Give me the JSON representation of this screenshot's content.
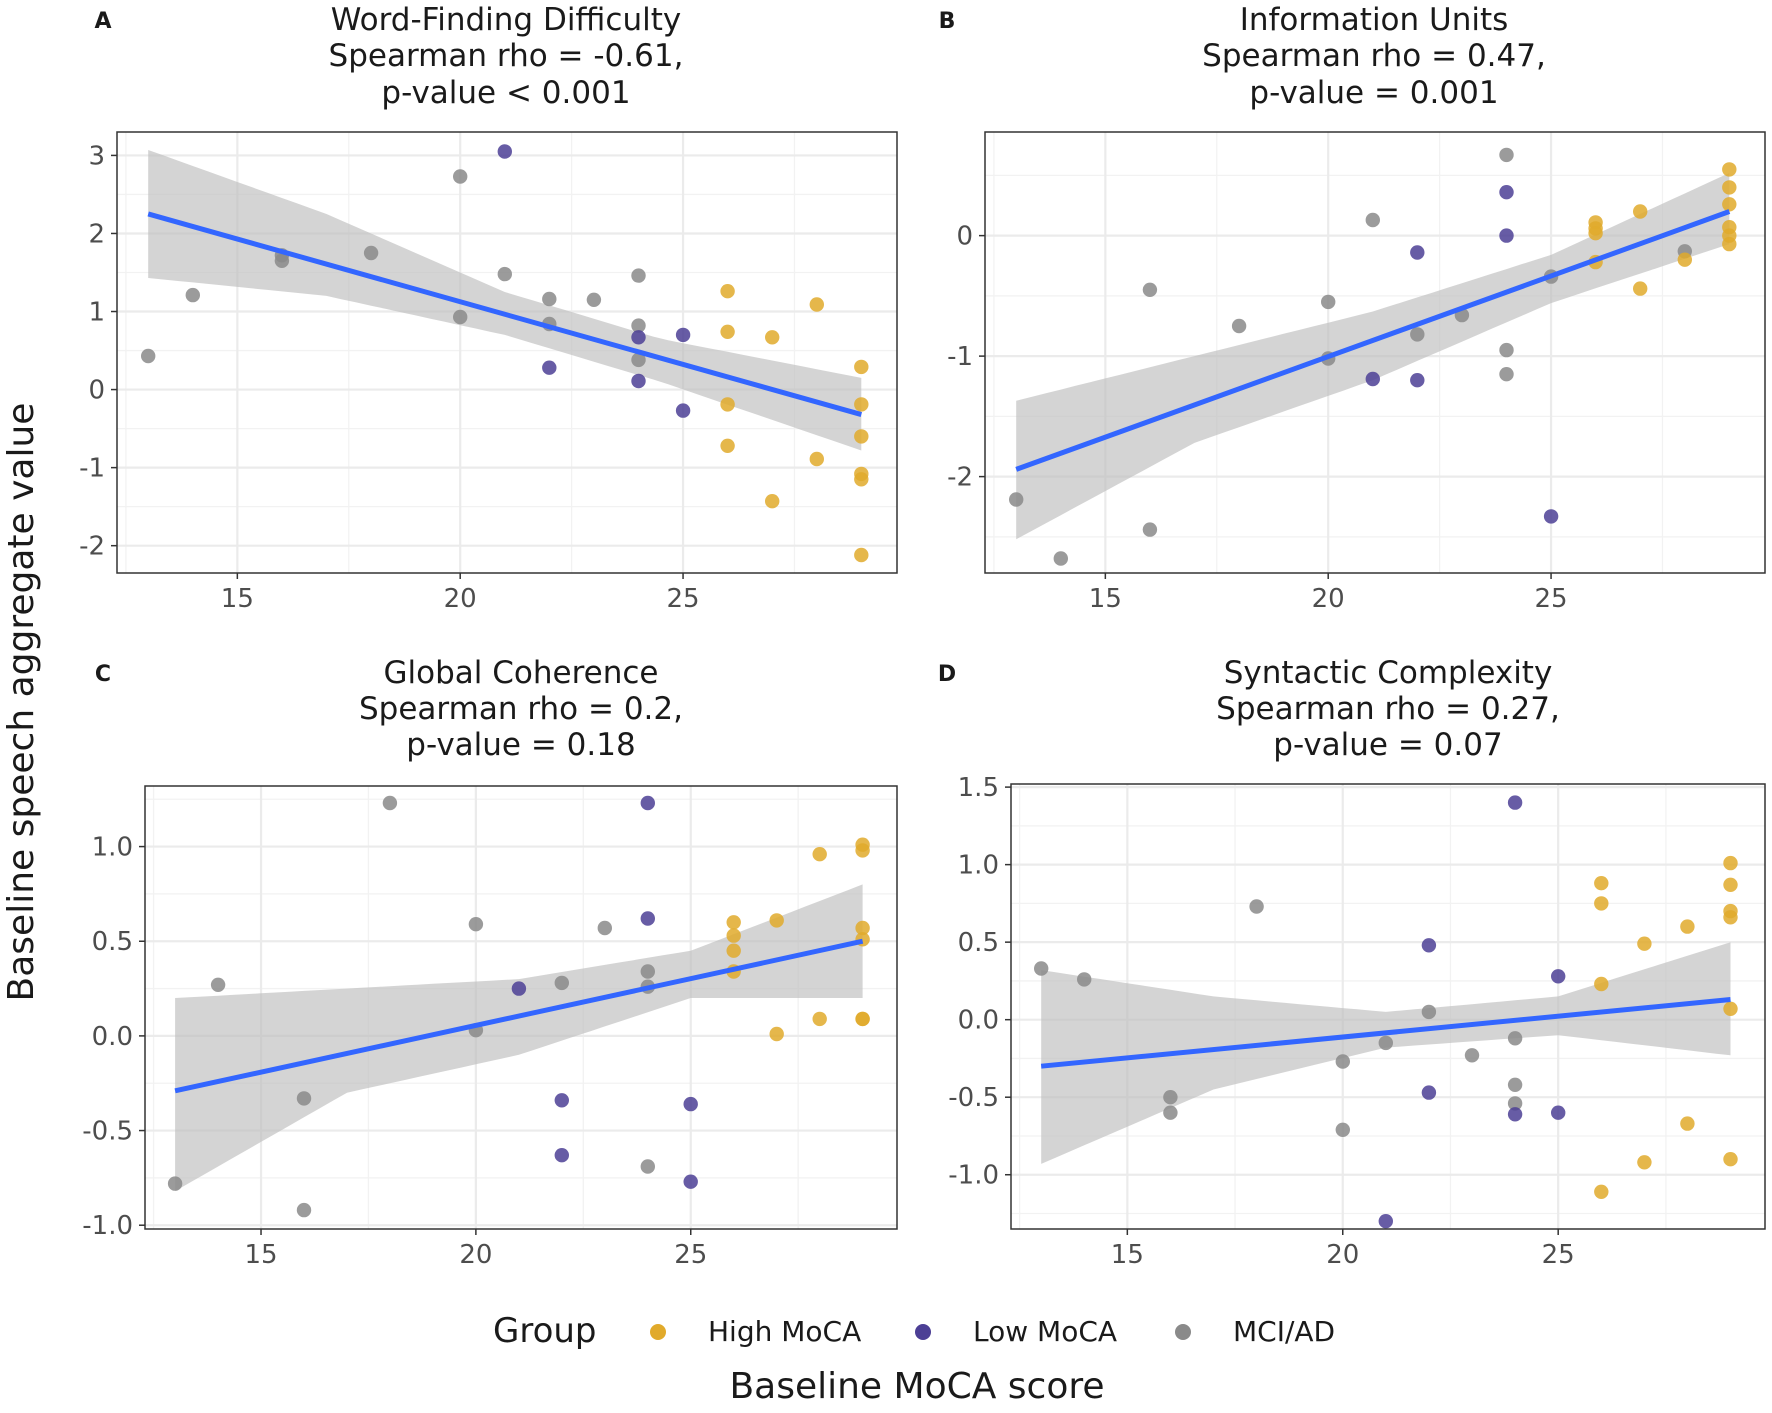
{
  "chart_data": {
    "ylabel_shared": "Baseline speech aggregate value",
    "xlabel_shared": "Baseline MoCA score",
    "legend": {
      "title": "Group",
      "items": [
        {
          "label": "High MoCA",
          "color": "#E1AA2B"
        },
        {
          "label": "Low MoCA",
          "color": "#4C3F95"
        },
        {
          "label": "MCI/AD",
          "color": "#8A8A8A"
        }
      ],
      "placement": "bottom-center"
    },
    "colors": {
      "fit_line": "#3366FF",
      "ribbon": "#BDBDBD",
      "panel_border": "#333333",
      "grid": "#EBEBEB"
    },
    "panels": [
      {
        "letter": "A",
        "type": "scatter",
        "title_lines": [
          "Word-Finding Difficulty",
          "Spearman rho = -0.61,",
          "p-value < 0.001"
        ],
        "xlim": [
          12.3,
          29.8
        ],
        "ylim": [
          -2.35,
          3.3
        ],
        "xticks": [
          15,
          20,
          25
        ],
        "yticks": [
          3,
          2,
          1,
          0,
          -1,
          -2
        ],
        "ytick_labels": [
          "3",
          "2",
          "1",
          "0",
          "-1",
          "-2"
        ],
        "fit": {
          "x": [
            13,
            29
          ],
          "y": [
            2.25,
            -0.32
          ]
        },
        "ribbon": {
          "x": [
            13,
            17,
            21,
            24.5,
            29
          ],
          "upper": [
            3.07,
            2.25,
            1.25,
            0.65,
            0.15
          ],
          "lower": [
            1.43,
            1.2,
            0.7,
            0.1,
            -0.78
          ]
        },
        "points": [
          {
            "x": 13,
            "y": 0.43,
            "group": 2
          },
          {
            "x": 14,
            "y": 1.21,
            "group": 2
          },
          {
            "x": 16,
            "y": 1.72,
            "group": 2
          },
          {
            "x": 16,
            "y": 1.65,
            "group": 2
          },
          {
            "x": 18,
            "y": 1.75,
            "group": 2
          },
          {
            "x": 20,
            "y": 2.73,
            "group": 2
          },
          {
            "x": 20,
            "y": 0.93,
            "group": 2
          },
          {
            "x": 21,
            "y": 3.05,
            "group": 1
          },
          {
            "x": 21,
            "y": 1.48,
            "group": 2
          },
          {
            "x": 22,
            "y": 1.16,
            "group": 2
          },
          {
            "x": 22,
            "y": 0.84,
            "group": 2
          },
          {
            "x": 22,
            "y": 0.28,
            "group": 1
          },
          {
            "x": 23,
            "y": 1.15,
            "group": 2
          },
          {
            "x": 24,
            "y": 1.46,
            "group": 2
          },
          {
            "x": 24,
            "y": 0.82,
            "group": 2
          },
          {
            "x": 24,
            "y": 0.67,
            "group": 1
          },
          {
            "x": 24,
            "y": 0.38,
            "group": 2
          },
          {
            "x": 24,
            "y": 0.11,
            "group": 1
          },
          {
            "x": 25,
            "y": 0.7,
            "group": 1
          },
          {
            "x": 25,
            "y": -0.27,
            "group": 1
          },
          {
            "x": 26,
            "y": 1.26,
            "group": 0
          },
          {
            "x": 26,
            "y": 0.74,
            "group": 0
          },
          {
            "x": 26,
            "y": -0.19,
            "group": 0
          },
          {
            "x": 26,
            "y": -0.72,
            "group": 0
          },
          {
            "x": 27,
            "y": 0.67,
            "group": 0
          },
          {
            "x": 27,
            "y": -1.43,
            "group": 0
          },
          {
            "x": 28,
            "y": 1.09,
            "group": 0
          },
          {
            "x": 28,
            "y": -0.89,
            "group": 0
          },
          {
            "x": 29,
            "y": 0.29,
            "group": 0
          },
          {
            "x": 29,
            "y": -0.19,
            "group": 0
          },
          {
            "x": 29,
            "y": -0.6,
            "group": 0
          },
          {
            "x": 29,
            "y": -1.08,
            "group": 0
          },
          {
            "x": 29,
            "y": -1.15,
            "group": 0
          },
          {
            "x": 29,
            "y": -2.12,
            "group": 0
          }
        ]
      },
      {
        "letter": "B",
        "type": "scatter",
        "title_lines": [
          "Information Units",
          "Spearman rho = 0.47,",
          "p-value = 0.001"
        ],
        "xlim": [
          12.3,
          29.8
        ],
        "ylim": [
          -2.8,
          0.86
        ],
        "xticks": [
          15,
          20,
          25
        ],
        "yticks": [
          0,
          -1,
          -2
        ],
        "ytick_labels": [
          "0",
          "-1",
          "-2"
        ],
        "fit": {
          "x": [
            13,
            29
          ],
          "y": [
            -1.94,
            0.2
          ]
        },
        "ribbon": {
          "x": [
            13,
            17,
            21,
            25,
            29
          ],
          "upper": [
            -1.37,
            -1.0,
            -0.63,
            -0.16,
            0.52
          ],
          "lower": [
            -2.52,
            -1.72,
            -1.2,
            -0.56,
            -0.07
          ]
        },
        "points": [
          {
            "x": 13,
            "y": -2.19,
            "group": 2
          },
          {
            "x": 14,
            "y": -2.68,
            "group": 2
          },
          {
            "x": 16,
            "y": -0.45,
            "group": 2
          },
          {
            "x": 16,
            "y": -2.44,
            "group": 2
          },
          {
            "x": 18,
            "y": -0.75,
            "group": 2
          },
          {
            "x": 20,
            "y": -0.55,
            "group": 2
          },
          {
            "x": 20,
            "y": -1.02,
            "group": 2
          },
          {
            "x": 21,
            "y": 0.13,
            "group": 2
          },
          {
            "x": 21,
            "y": -1.19,
            "group": 1
          },
          {
            "x": 22,
            "y": -0.14,
            "group": 1
          },
          {
            "x": 22,
            "y": -0.82,
            "group": 2
          },
          {
            "x": 22,
            "y": -1.2,
            "group": 1
          },
          {
            "x": 23,
            "y": -0.66,
            "group": 2
          },
          {
            "x": 24,
            "y": 0.67,
            "group": 2
          },
          {
            "x": 24,
            "y": 0.36,
            "group": 1
          },
          {
            "x": 24,
            "y": 0.0,
            "group": 1
          },
          {
            "x": 24,
            "y": -0.95,
            "group": 2
          },
          {
            "x": 24,
            "y": -1.15,
            "group": 2
          },
          {
            "x": 25,
            "y": -0.34,
            "group": 2
          },
          {
            "x": 25,
            "y": -2.33,
            "group": 1
          },
          {
            "x": 26,
            "y": 0.11,
            "group": 0
          },
          {
            "x": 26,
            "y": 0.06,
            "group": 0
          },
          {
            "x": 26,
            "y": 0.02,
            "group": 0
          },
          {
            "x": 26,
            "y": -0.22,
            "group": 0
          },
          {
            "x": 27,
            "y": 0.2,
            "group": 0
          },
          {
            "x": 27,
            "y": -0.44,
            "group": 0
          },
          {
            "x": 28,
            "y": -0.13,
            "group": 2
          },
          {
            "x": 28,
            "y": -0.2,
            "group": 0
          },
          {
            "x": 29,
            "y": 0.55,
            "group": 0
          },
          {
            "x": 29,
            "y": 0.4,
            "group": 0
          },
          {
            "x": 29,
            "y": 0.26,
            "group": 0
          },
          {
            "x": 29,
            "y": 0.07,
            "group": 0
          },
          {
            "x": 29,
            "y": 0.0,
            "group": 0
          },
          {
            "x": 29,
            "y": -0.07,
            "group": 0
          }
        ]
      },
      {
        "letter": "C",
        "type": "scatter",
        "title_lines": [
          "Global Coherence",
          "Spearman rho = 0.2,",
          "p-value = 0.18"
        ],
        "xlim": [
          12.3,
          29.8
        ],
        "ylim": [
          -1.02,
          1.32
        ],
        "xticks": [
          15,
          20,
          25
        ],
        "yticks": [
          1.0,
          0.5,
          0.0,
          -0.5,
          -1.0
        ],
        "ytick_labels": [
          "1.0",
          "0.5",
          "0.0",
          "-0.5",
          "-1.0"
        ],
        "fit": {
          "x": [
            13,
            29
          ],
          "y": [
            -0.29,
            0.5
          ]
        },
        "ribbon": {
          "x": [
            13,
            17,
            21,
            25,
            29
          ],
          "upper": [
            0.2,
            0.25,
            0.3,
            0.45,
            0.8
          ],
          "lower": [
            -0.82,
            -0.3,
            -0.1,
            0.2,
            0.2
          ]
        },
        "points": [
          {
            "x": 13,
            "y": -0.78,
            "group": 2
          },
          {
            "x": 14,
            "y": 0.27,
            "group": 2
          },
          {
            "x": 16,
            "y": -0.33,
            "group": 2
          },
          {
            "x": 16,
            "y": -0.92,
            "group": 2
          },
          {
            "x": 18,
            "y": 1.23,
            "group": 2
          },
          {
            "x": 20,
            "y": 0.59,
            "group": 2
          },
          {
            "x": 20,
            "y": 0.03,
            "group": 2
          },
          {
            "x": 21,
            "y": 0.25,
            "group": 1
          },
          {
            "x": 22,
            "y": 0.28,
            "group": 2
          },
          {
            "x": 22,
            "y": -0.34,
            "group": 1
          },
          {
            "x": 22,
            "y": -0.63,
            "group": 1
          },
          {
            "x": 23,
            "y": 0.57,
            "group": 2
          },
          {
            "x": 24,
            "y": 1.23,
            "group": 1
          },
          {
            "x": 24,
            "y": 0.62,
            "group": 1
          },
          {
            "x": 24,
            "y": 0.34,
            "group": 2
          },
          {
            "x": 24,
            "y": 0.26,
            "group": 2
          },
          {
            "x": 24,
            "y": -0.69,
            "group": 2
          },
          {
            "x": 25,
            "y": -0.36,
            "group": 1
          },
          {
            "x": 25,
            "y": -0.77,
            "group": 1
          },
          {
            "x": 26,
            "y": 0.6,
            "group": 0
          },
          {
            "x": 26,
            "y": 0.53,
            "group": 0
          },
          {
            "x": 26,
            "y": 0.45,
            "group": 0
          },
          {
            "x": 26,
            "y": 0.34,
            "group": 0
          },
          {
            "x": 27,
            "y": 0.61,
            "group": 0
          },
          {
            "x": 27,
            "y": 0.01,
            "group": 0
          },
          {
            "x": 28,
            "y": 0.96,
            "group": 0
          },
          {
            "x": 28,
            "y": 0.09,
            "group": 0
          },
          {
            "x": 29,
            "y": 1.01,
            "group": 0
          },
          {
            "x": 29,
            "y": 0.98,
            "group": 0
          },
          {
            "x": 29,
            "y": 0.57,
            "group": 0
          },
          {
            "x": 29,
            "y": 0.51,
            "group": 0
          },
          {
            "x": 29,
            "y": 0.09,
            "group": 0
          },
          {
            "x": 29,
            "y": 0.09,
            "group": 0
          }
        ]
      },
      {
        "letter": "D",
        "type": "scatter",
        "title_lines": [
          "Syntactic Complexity",
          "Spearman rho = 0.27,",
          "p-value = 0.07"
        ],
        "xlim": [
          12.3,
          29.8
        ],
        "ylim": [
          -1.35,
          1.52
        ],
        "xticks": [
          15,
          20,
          25
        ],
        "yticks": [
          1.5,
          1.0,
          0.5,
          0.0,
          -0.5,
          -1.0
        ],
        "ytick_labels": [
          "1.5",
          "1.0",
          "0.5",
          "0.0",
          "-0.5",
          "-1.0"
        ],
        "fit": {
          "x": [
            13,
            29
          ],
          "y": [
            -0.3,
            0.13
          ]
        },
        "ribbon": {
          "x": [
            13,
            17,
            21,
            25,
            29
          ],
          "upper": [
            0.32,
            0.15,
            0.05,
            0.15,
            0.5
          ],
          "lower": [
            -0.93,
            -0.45,
            -0.18,
            -0.1,
            -0.23
          ]
        },
        "points": [
          {
            "x": 13,
            "y": 0.33,
            "group": 2
          },
          {
            "x": 14,
            "y": 0.26,
            "group": 2
          },
          {
            "x": 16,
            "y": -0.5,
            "group": 2
          },
          {
            "x": 16,
            "y": -0.6,
            "group": 2
          },
          {
            "x": 18,
            "y": 0.73,
            "group": 2
          },
          {
            "x": 20,
            "y": -0.27,
            "group": 2
          },
          {
            "x": 20,
            "y": -0.71,
            "group": 2
          },
          {
            "x": 21,
            "y": -0.15,
            "group": 2
          },
          {
            "x": 21,
            "y": -1.3,
            "group": 1
          },
          {
            "x": 22,
            "y": 0.48,
            "group": 1
          },
          {
            "x": 22,
            "y": 0.05,
            "group": 2
          },
          {
            "x": 22,
            "y": -0.47,
            "group": 1
          },
          {
            "x": 23,
            "y": -0.23,
            "group": 2
          },
          {
            "x": 24,
            "y": 1.4,
            "group": 1
          },
          {
            "x": 24,
            "y": -0.12,
            "group": 2
          },
          {
            "x": 24,
            "y": -0.42,
            "group": 2
          },
          {
            "x": 24,
            "y": -0.54,
            "group": 2
          },
          {
            "x": 24,
            "y": -0.61,
            "group": 1
          },
          {
            "x": 25,
            "y": 0.28,
            "group": 1
          },
          {
            "x": 25,
            "y": -0.6,
            "group": 1
          },
          {
            "x": 26,
            "y": 0.88,
            "group": 0
          },
          {
            "x": 26,
            "y": 0.75,
            "group": 0
          },
          {
            "x": 26,
            "y": 0.23,
            "group": 0
          },
          {
            "x": 26,
            "y": -1.11,
            "group": 0
          },
          {
            "x": 27,
            "y": 0.49,
            "group": 0
          },
          {
            "x": 27,
            "y": -0.92,
            "group": 0
          },
          {
            "x": 28,
            "y": 0.6,
            "group": 0
          },
          {
            "x": 28,
            "y": -0.67,
            "group": 0
          },
          {
            "x": 29,
            "y": 1.01,
            "group": 0
          },
          {
            "x": 29,
            "y": 0.87,
            "group": 0
          },
          {
            "x": 29,
            "y": 0.7,
            "group": 0
          },
          {
            "x": 29,
            "y": 0.66,
            "group": 0
          },
          {
            "x": 29,
            "y": 0.07,
            "group": 0
          },
          {
            "x": 29,
            "y": -0.9,
            "group": 0
          }
        ]
      }
    ]
  }
}
